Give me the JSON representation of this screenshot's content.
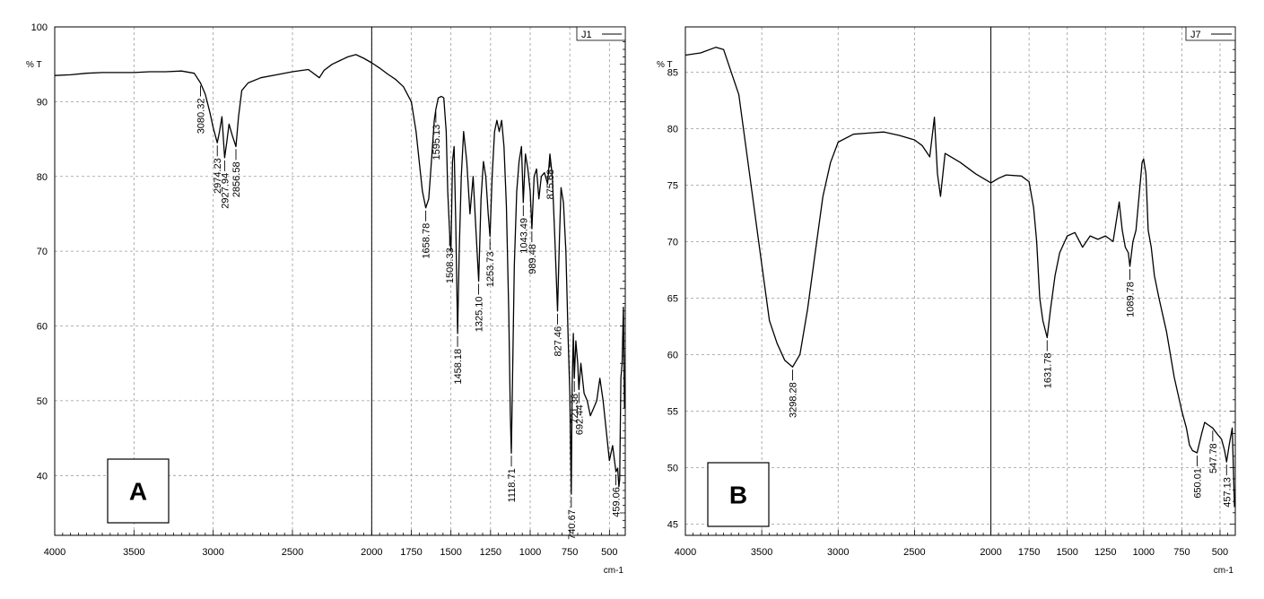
{
  "chart_data": [
    {
      "type": "line",
      "panel_letter": "A",
      "legend": "J1",
      "ylabel": "% T",
      "xlabel": "cm-1",
      "xlim": [
        4000,
        400
      ],
      "ylim": [
        32,
        100
      ],
      "xticks": [
        4000,
        3500,
        3000,
        2500,
        2000,
        1750,
        1500,
        1250,
        1000,
        750,
        500
      ],
      "yticks": [
        40,
        50,
        60,
        70,
        80,
        90,
        100
      ],
      "x_divider": 2000,
      "grid": true,
      "series": [
        {
          "values": [
            [
              4000,
              93.5
            ],
            [
              3900,
              93.6
            ],
            [
              3800,
              93.8
            ],
            [
              3700,
              93.9
            ],
            [
              3600,
              93.9
            ],
            [
              3500,
              93.9
            ],
            [
              3400,
              94.0
            ],
            [
              3300,
              94.0
            ],
            [
              3200,
              94.1
            ],
            [
              3120,
              93.8
            ],
            [
              3080.32,
              92.5
            ],
            [
              3050,
              91.0
            ],
            [
              3020,
              88.5
            ],
            [
              3000,
              86.5
            ],
            [
              2974.23,
              84.5
            ],
            [
              2960,
              86.0
            ],
            [
              2945,
              88.0
            ],
            [
              2927.94,
              82.5
            ],
            [
              2915,
              84.5
            ],
            [
              2900,
              87.0
            ],
            [
              2880,
              85.5
            ],
            [
              2856.58,
              84.0
            ],
            [
              2840,
              88.0
            ],
            [
              2820,
              91.5
            ],
            [
              2780,
              92.5
            ],
            [
              2700,
              93.2
            ],
            [
              2600,
              93.6
            ],
            [
              2500,
              94.0
            ],
            [
              2400,
              94.3
            ],
            [
              2330,
              93.2
            ],
            [
              2300,
              94.2
            ],
            [
              2250,
              95.0
            ],
            [
              2200,
              95.5
            ],
            [
              2150,
              96.0
            ],
            [
              2100,
              96.3
            ],
            [
              2050,
              95.8
            ],
            [
              2000,
              95.2
            ],
            [
              1950,
              94.5
            ],
            [
              1900,
              93.7
            ],
            [
              1850,
              93.0
            ],
            [
              1800,
              92.0
            ],
            [
              1750,
              90.0
            ],
            [
              1720,
              86.0
            ],
            [
              1700,
              82.0
            ],
            [
              1680,
              78.0
            ],
            [
              1658.78,
              75.8
            ],
            [
              1640,
              77.0
            ],
            [
              1620,
              83.0
            ],
            [
              1605,
              87.5
            ],
            [
              1595.13,
              89.0
            ],
            [
              1580,
              90.5
            ],
            [
              1560,
              90.7
            ],
            [
              1545,
              90.5
            ],
            [
              1530,
              86.0
            ],
            [
              1520,
              78.0
            ],
            [
              1508.33,
              72.5
            ],
            [
              1500,
              70.0
            ],
            [
              1490,
              82.0
            ],
            [
              1480,
              84.0
            ],
            [
              1470,
              74.0
            ],
            [
              1458.18,
              59.0
            ],
            [
              1448,
              70.0
            ],
            [
              1435,
              80.0
            ],
            [
              1420,
              86.0
            ],
            [
              1400,
              82.0
            ],
            [
              1380,
              75.0
            ],
            [
              1360,
              80.0
            ],
            [
              1340,
              72.0
            ],
            [
              1325.1,
              66.0
            ],
            [
              1310,
              77.0
            ],
            [
              1295,
              82.0
            ],
            [
              1280,
              80.0
            ],
            [
              1265,
              75.0
            ],
            [
              1253.73,
              72.0
            ],
            [
              1240,
              80.0
            ],
            [
              1225,
              86.0
            ],
            [
              1210,
              87.5
            ],
            [
              1195,
              86.0
            ],
            [
              1180,
              87.5
            ],
            [
              1165,
              84.0
            ],
            [
              1150,
              76.0
            ],
            [
              1135,
              62.0
            ],
            [
              1125,
              48.0
            ],
            [
              1118.71,
              43.0
            ],
            [
              1112,
              52.0
            ],
            [
              1100,
              68.0
            ],
            [
              1085,
              78.0
            ],
            [
              1070,
              82.0
            ],
            [
              1055,
              84.0
            ],
            [
              1043.49,
              76.5
            ],
            [
              1030,
              83.0
            ],
            [
              1015,
              81.0
            ],
            [
              1000,
              78.0
            ],
            [
              989.48,
              73.0
            ],
            [
              975,
              80.0
            ],
            [
              960,
              81.0
            ],
            [
              945,
              77.0
            ],
            [
              930,
              80.0
            ],
            [
              910,
              80.5
            ],
            [
              890,
              79.0
            ],
            [
              875.68,
              83.0
            ],
            [
              860,
              80.0
            ],
            [
              845,
              72.0
            ],
            [
              827.46,
              62.0
            ],
            [
              815,
              72.0
            ],
            [
              805,
              78.5
            ],
            [
              790,
              76.5
            ],
            [
              775,
              70.0
            ],
            [
              760,
              58.0
            ],
            [
              750,
              51.0
            ],
            [
              740.67,
              37.5
            ],
            [
              735,
              52.0
            ],
            [
              728,
              59.0
            ],
            [
              721.38,
              53.0
            ],
            [
              712,
              58.0
            ],
            [
              700,
              55.0
            ],
            [
              692.44,
              51.5
            ],
            [
              680,
              55.0
            ],
            [
              660,
              51.0
            ],
            [
              640,
              50.0
            ],
            [
              620,
              48.0
            ],
            [
              600,
              49.0
            ],
            [
              580,
              50.0
            ],
            [
              560,
              53.0
            ],
            [
              540,
              50.0
            ],
            [
              520,
              46.0
            ],
            [
              500,
              42.0
            ],
            [
              480,
              44.0
            ],
            [
              468,
              42.0
            ],
            [
              459.06,
              40.5
            ],
            [
              448,
              41.0
            ],
            [
              440,
              38.5
            ],
            [
              435,
              39.5
            ],
            [
              428,
              53.0
            ],
            [
              420,
              55.0
            ],
            [
              412,
              62.5
            ],
            [
              405,
              49.0
            ]
          ]
        }
      ],
      "annotations": [
        {
          "x": 3080.32,
          "label": "3080.32"
        },
        {
          "x": 2974.23,
          "label": "2974.23"
        },
        {
          "x": 2927.94,
          "label": "2927.94"
        },
        {
          "x": 2856.58,
          "label": "2856.58"
        },
        {
          "x": 1658.78,
          "label": "1658.78"
        },
        {
          "x": 1595.13,
          "label": "1595.13"
        },
        {
          "x": 1508.33,
          "label": "1508.33"
        },
        {
          "x": 1458.18,
          "label": "1458.18"
        },
        {
          "x": 1325.1,
          "label": "1325.10"
        },
        {
          "x": 1253.73,
          "label": "1253.73"
        },
        {
          "x": 1118.71,
          "label": "1118.71"
        },
        {
          "x": 1043.49,
          "label": "1043.49"
        },
        {
          "x": 989.48,
          "label": "989.48"
        },
        {
          "x": 875.68,
          "label": "875.68"
        },
        {
          "x": 827.46,
          "label": "827.46"
        },
        {
          "x": 740.67,
          "label": "740.67"
        },
        {
          "x": 721.38,
          "label": "721.38"
        },
        {
          "x": 692.44,
          "label": "692.44"
        },
        {
          "x": 459.06,
          "label": "459.06"
        }
      ]
    },
    {
      "type": "line",
      "panel_letter": "B",
      "legend": "J7",
      "ylabel": "% T",
      "xlabel": "cm-1",
      "xlim": [
        4000,
        400
      ],
      "ylim": [
        44,
        89
      ],
      "xticks": [
        4000,
        3500,
        3000,
        2500,
        2000,
        1750,
        1500,
        1250,
        1000,
        750,
        500
      ],
      "yticks": [
        45,
        50,
        55,
        60,
        65,
        70,
        75,
        80,
        85
      ],
      "x_divider": 2000,
      "grid": true,
      "series": [
        {
          "values": [
            [
              4000,
              86.5
            ],
            [
              3900,
              86.7
            ],
            [
              3800,
              87.2
            ],
            [
              3750,
              87.0
            ],
            [
              3700,
              85.0
            ],
            [
              3650,
              83.0
            ],
            [
              3600,
              78.0
            ],
            [
              3550,
              73.0
            ],
            [
              3500,
              68.0
            ],
            [
              3450,
              63.0
            ],
            [
              3400,
              61.0
            ],
            [
              3350,
              59.5
            ],
            [
              3298.28,
              58.9
            ],
            [
              3250,
              60.0
            ],
            [
              3200,
              64.0
            ],
            [
              3150,
              69.0
            ],
            [
              3100,
              74.0
            ],
            [
              3050,
              77.0
            ],
            [
              3000,
              78.8
            ],
            [
              2900,
              79.5
            ],
            [
              2800,
              79.6
            ],
            [
              2700,
              79.7
            ],
            [
              2600,
              79.4
            ],
            [
              2500,
              79.0
            ],
            [
              2450,
              78.5
            ],
            [
              2400,
              77.5
            ],
            [
              2370,
              81.0
            ],
            [
              2350,
              76.0
            ],
            [
              2330,
              74.0
            ],
            [
              2300,
              77.8
            ],
            [
              2200,
              77.0
            ],
            [
              2100,
              76.0
            ],
            [
              2000,
              75.2
            ],
            [
              1950,
              75.6
            ],
            [
              1900,
              75.9
            ],
            [
              1800,
              75.8
            ],
            [
              1750,
              75.3
            ],
            [
              1720,
              73.0
            ],
            [
              1700,
              70.0
            ],
            [
              1680,
              65.0
            ],
            [
              1660,
              63.0
            ],
            [
              1631.78,
              61.5
            ],
            [
              1610,
              64.0
            ],
            [
              1580,
              67.0
            ],
            [
              1550,
              69.0
            ],
            [
              1500,
              70.5
            ],
            [
              1450,
              70.8
            ],
            [
              1400,
              69.5
            ],
            [
              1350,
              70.5
            ],
            [
              1300,
              70.2
            ],
            [
              1250,
              70.5
            ],
            [
              1200,
              70.0
            ],
            [
              1160,
              73.5
            ],
            [
              1140,
              71.0
            ],
            [
              1120,
              69.5
            ],
            [
              1100,
              69.0
            ],
            [
              1089.78,
              67.8
            ],
            [
              1070,
              70.0
            ],
            [
              1050,
              71.0
            ],
            [
              1030,
              74.0
            ],
            [
              1010,
              77.0
            ],
            [
              1000,
              77.3
            ],
            [
              985,
              76.0
            ],
            [
              970,
              71.0
            ],
            [
              950,
              69.5
            ],
            [
              930,
              67.0
            ],
            [
              900,
              65.0
            ],
            [
              850,
              62.0
            ],
            [
              800,
              58.0
            ],
            [
              750,
              55.0
            ],
            [
              720,
              53.5
            ],
            [
              700,
              52.0
            ],
            [
              680,
              51.5
            ],
            [
              650.01,
              51.3
            ],
            [
              620,
              53.0
            ],
            [
              600,
              54.0
            ],
            [
              580,
              53.8
            ],
            [
              547.78,
              53.5
            ],
            [
              520,
              53.0
            ],
            [
              490,
              52.5
            ],
            [
              470,
              51.5
            ],
            [
              457.13,
              50.5
            ],
            [
              440,
              52.0
            ],
            [
              420,
              53.5
            ],
            [
              405,
              46.5
            ]
          ]
        }
      ],
      "annotations": [
        {
          "x": 3298.28,
          "label": "3298.28"
        },
        {
          "x": 1631.78,
          "label": "1631.78"
        },
        {
          "x": 1089.78,
          "label": "1089.78"
        },
        {
          "x": 650.01,
          "label": "650.01"
        },
        {
          "x": 547.78,
          "label": "547.78"
        },
        {
          "x": 457.13,
          "label": "457.13"
        }
      ]
    }
  ]
}
